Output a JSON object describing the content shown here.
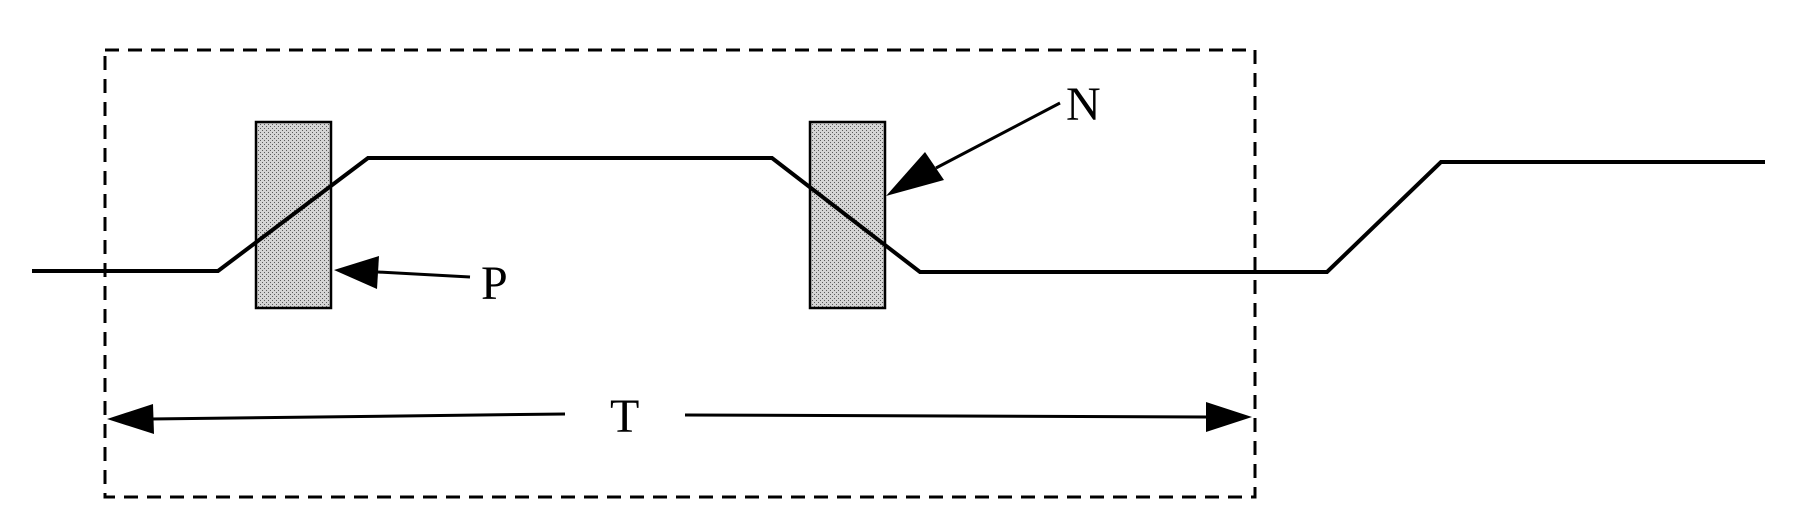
{
  "labels": {
    "p": "P",
    "n": "N",
    "t": "T"
  },
  "colors": {
    "line": "#000000",
    "marker_fill": "#c8c8c8",
    "background": "#ffffff"
  }
}
